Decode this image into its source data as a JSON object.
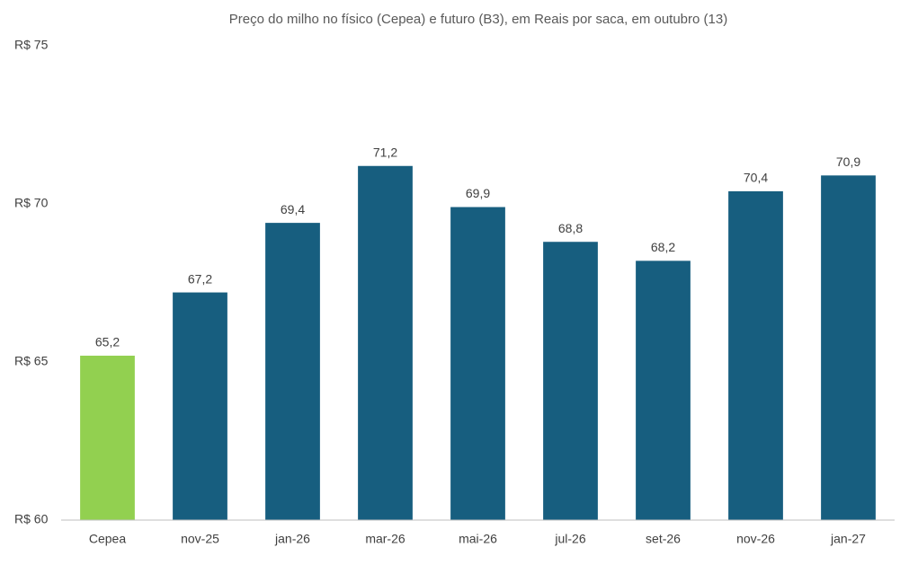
{
  "chart_data": {
    "type": "bar",
    "title": "Preço do milho no físico (Cepea) e futuro (B3), em Reais por saca, em outubro (13)",
    "categories": [
      "Cepea",
      "nov-25",
      "jan-26",
      "mar-26",
      "mai-26",
      "jul-26",
      "set-26",
      "nov-26",
      "jan-27"
    ],
    "values": [
      65.2,
      67.2,
      69.4,
      71.2,
      69.9,
      68.8,
      68.2,
      70.4,
      70.9
    ],
    "value_labels": [
      "65,2",
      "67,2",
      "69,4",
      "71,2",
      "69,9",
      "68,8",
      "68,2",
      "70,4",
      "70,9"
    ],
    "colors": [
      "#92d050",
      "#175e7f",
      "#175e7f",
      "#175e7f",
      "#175e7f",
      "#175e7f",
      "#175e7f",
      "#175e7f",
      "#175e7f"
    ],
    "ylim": [
      60,
      75
    ],
    "yticks": [
      {
        "value": 60,
        "label": "R$ 60"
      },
      {
        "value": 65,
        "label": "R$ 65"
      },
      {
        "value": 70,
        "label": "R$ 70"
      },
      {
        "value": 75,
        "label": "R$ 75"
      }
    ],
    "grid": false
  }
}
